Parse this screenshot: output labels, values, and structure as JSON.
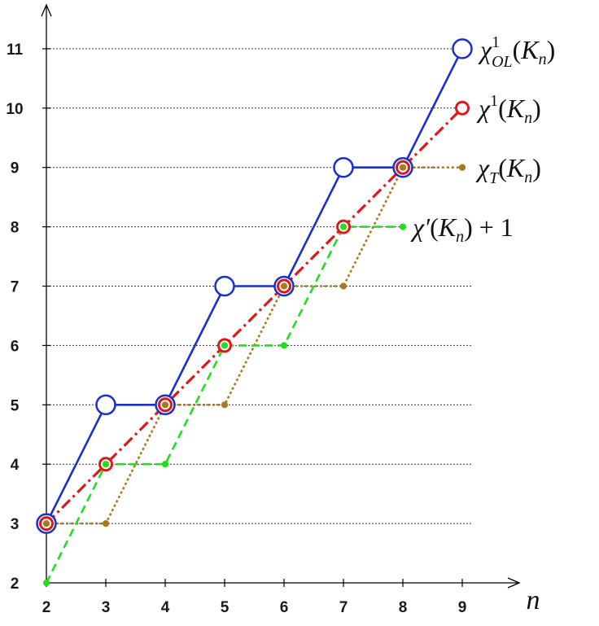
{
  "chart_data": {
    "type": "line",
    "xlabel": "n",
    "ylabel": "",
    "x": [
      2,
      3,
      4,
      5,
      6,
      7,
      8,
      9
    ],
    "xlim": [
      2,
      10
    ],
    "ylim": [
      2,
      12
    ],
    "yticks": [
      2,
      3,
      4,
      5,
      6,
      7,
      8,
      9,
      10,
      11
    ],
    "grid": "horizontal dotted",
    "series": [
      {
        "key": "ol",
        "label_main": "χ",
        "label_sup": "1",
        "label_sub": "OL",
        "label_rest": "(Kn)",
        "color": "#1a2fcc",
        "style": "solid",
        "marker": "large-hollow-circle",
        "points": [
          [
            2,
            3
          ],
          [
            3,
            5
          ],
          [
            4,
            5
          ],
          [
            5,
            7
          ],
          [
            6,
            7
          ],
          [
            7,
            9
          ],
          [
            8,
            9
          ],
          [
            9,
            11
          ]
        ]
      },
      {
        "key": "chi1",
        "label_main": "χ",
        "label_sup": "1",
        "label_sub": "",
        "label_rest": "(Kn)",
        "color": "#dd1a1a",
        "style": "dashdot",
        "marker": "hollow-circle",
        "points": [
          [
            2,
            3
          ],
          [
            3,
            4
          ],
          [
            4,
            5
          ],
          [
            5,
            6
          ],
          [
            6,
            7
          ],
          [
            7,
            8
          ],
          [
            8,
            9
          ],
          [
            9,
            10
          ]
        ]
      },
      {
        "key": "chiT",
        "label_main": "χ",
        "label_sup": "",
        "label_sub": "T",
        "label_rest": "(Kn)",
        "color": "#a77a1e",
        "style": "dotted",
        "marker": "dot",
        "points": [
          [
            2,
            3
          ],
          [
            3,
            3
          ],
          [
            4,
            5
          ],
          [
            5,
            5
          ],
          [
            6,
            7
          ],
          [
            7,
            7
          ],
          [
            8,
            9
          ],
          [
            9,
            9
          ]
        ]
      },
      {
        "key": "chiprime",
        "label_main": "χ′",
        "label_sup": "",
        "label_sub": "",
        "label_rest": "(Kn) + 1",
        "color": "#22dd22",
        "style": "dashed",
        "marker": "dot",
        "points": [
          [
            2,
            2
          ],
          [
            3,
            4
          ],
          [
            4,
            4
          ],
          [
            5,
            6
          ],
          [
            6,
            6
          ],
          [
            7,
            8
          ],
          [
            8,
            8
          ]
        ]
      }
    ]
  }
}
